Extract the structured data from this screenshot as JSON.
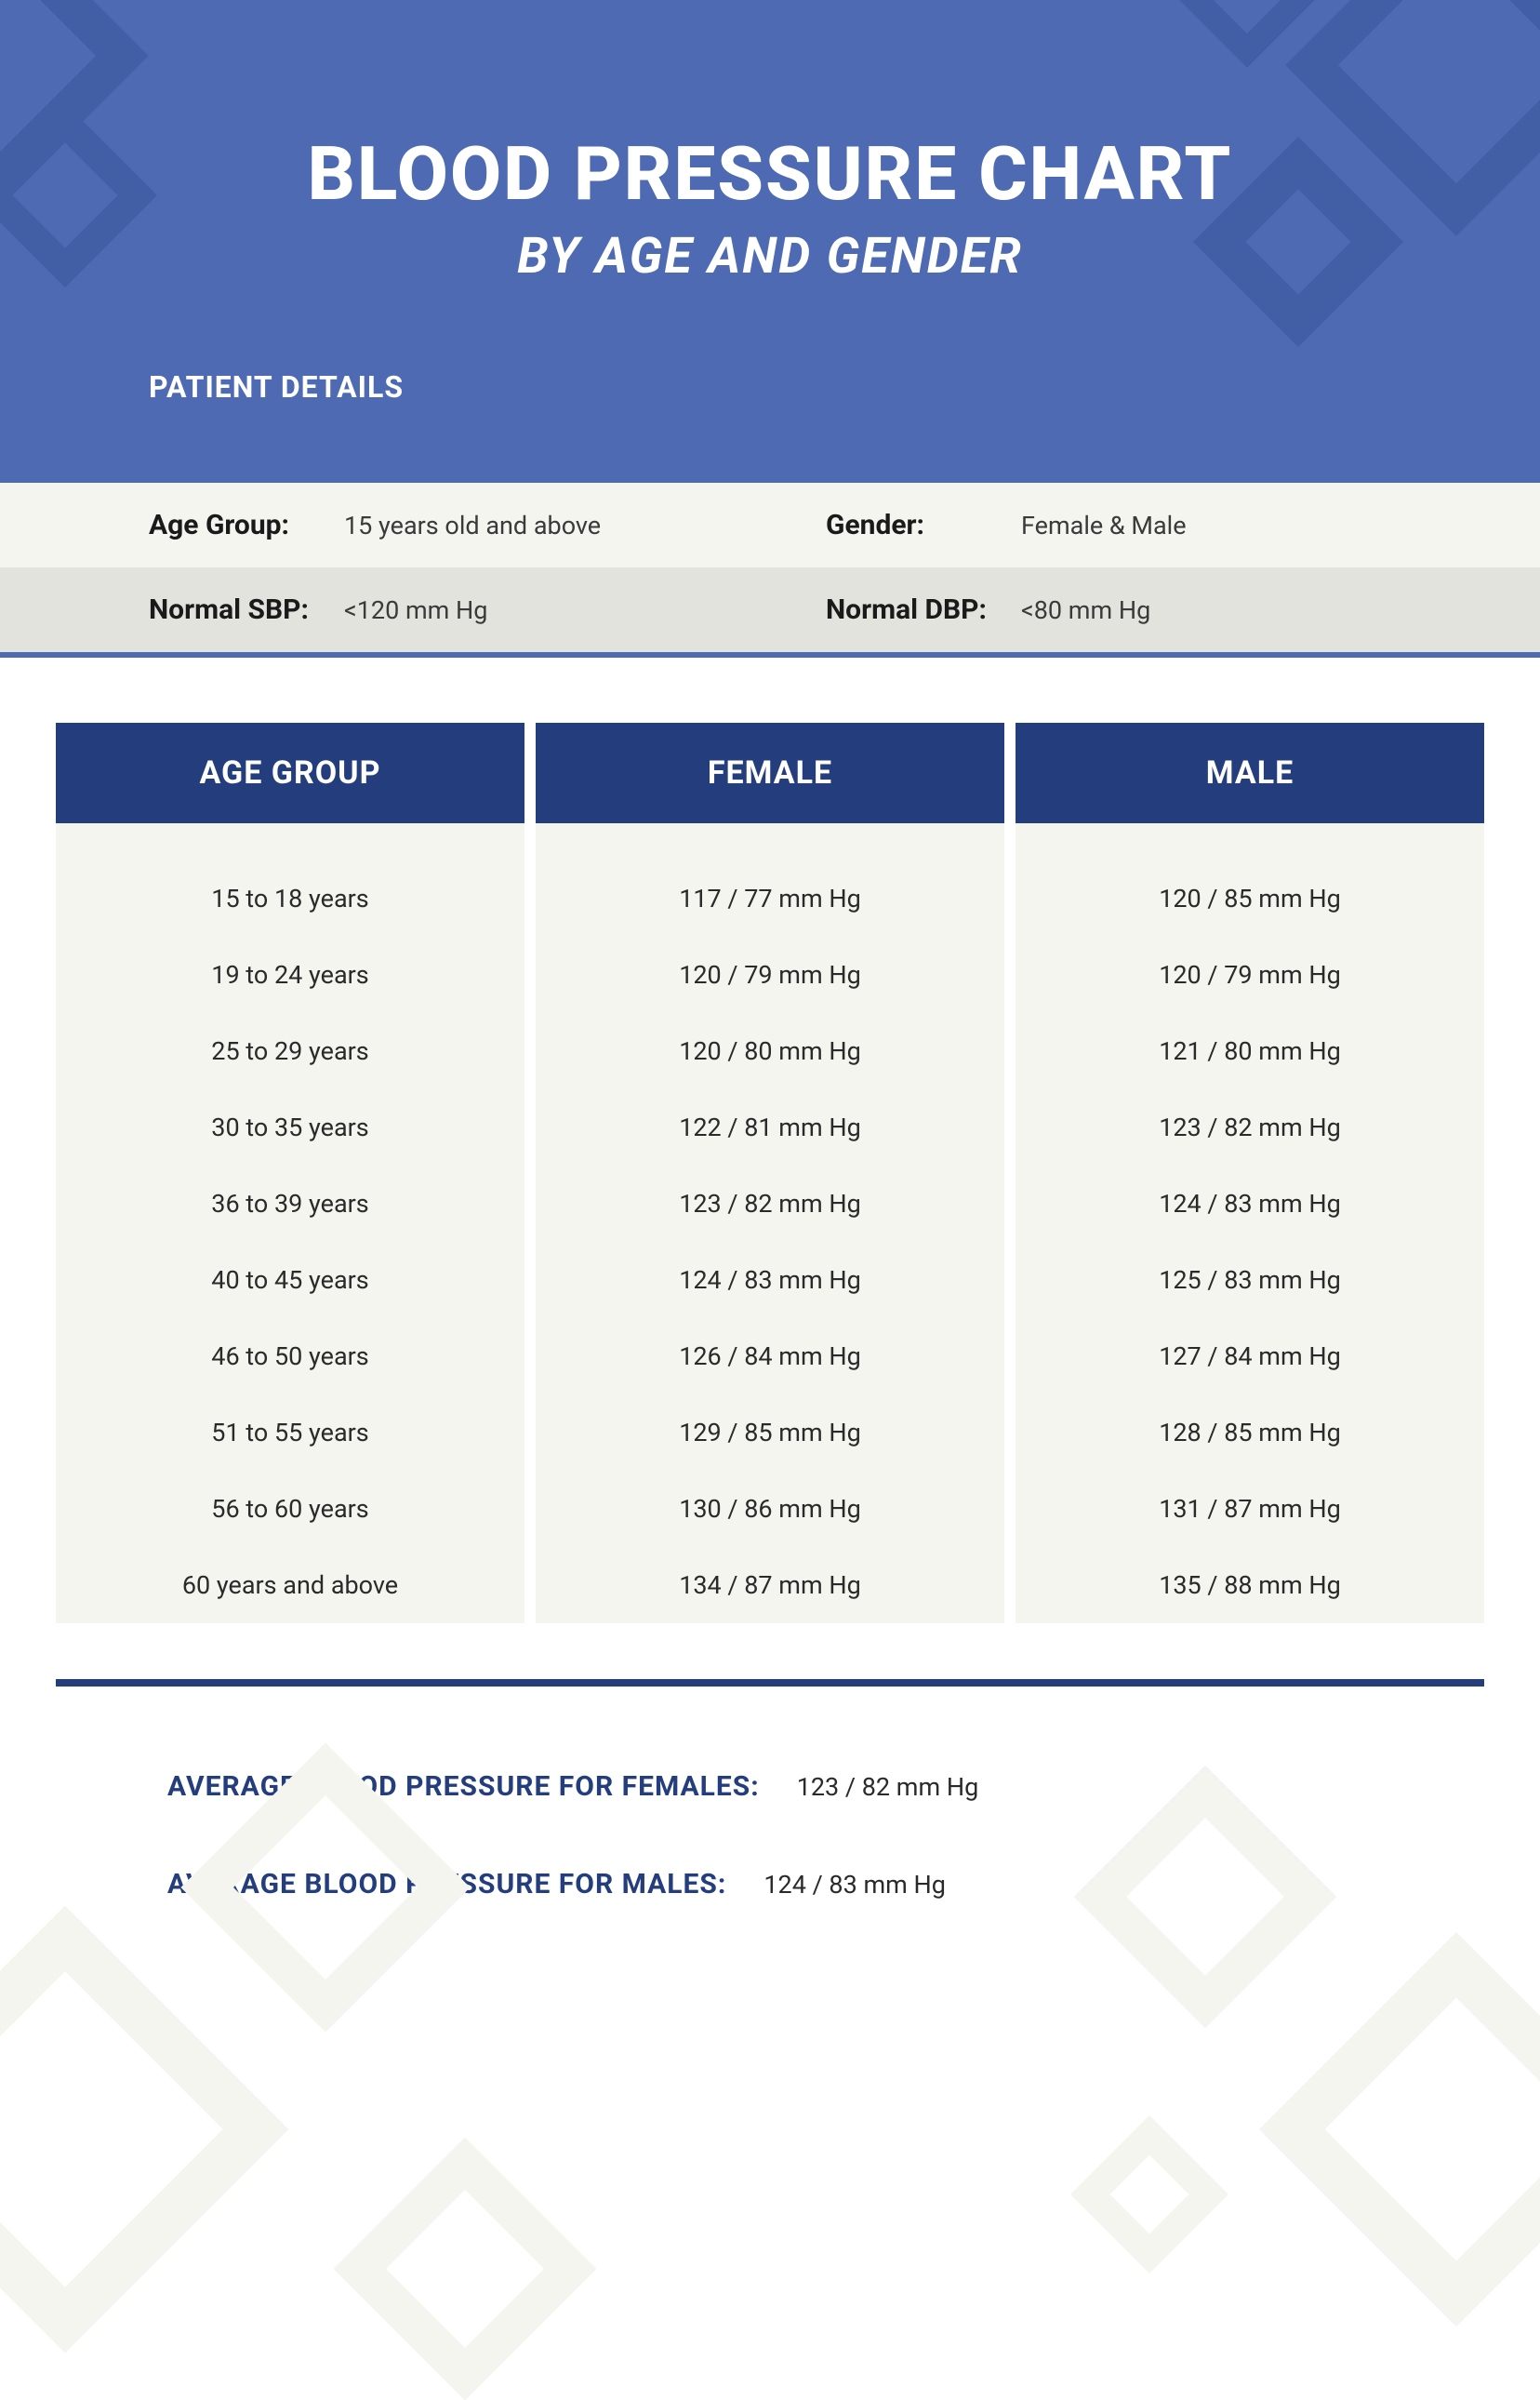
{
  "header": {
    "title": "BLOOD PRESSURE CHART",
    "subtitle": "BY AGE AND GENDER",
    "patient_section_label": "PATIENT DETAILS",
    "bg_color": "#4d6ab2",
    "deco_color": "#425fa5",
    "title_fontsize": 80,
    "subtitle_fontsize": 54
  },
  "patient_details": {
    "age_group_label": "Age Group:",
    "age_group_value": "15 years old and above",
    "gender_label": "Gender:",
    "gender_value": "Female & Male",
    "normal_sbp_label": "Normal SBP:",
    "normal_sbp_value": "<120 mm Hg",
    "normal_dbp_label": "Normal DBP:",
    "normal_dbp_value": "<80 mm Hg",
    "row1_bg": "#f4f5ee",
    "row2_bg": "#e3e3dd",
    "border_color": "#4d6ab2"
  },
  "table": {
    "type": "table",
    "header_bg": "#243e7d",
    "header_text_color": "#ffffff",
    "body_bg": "#f4f5ee",
    "border_bottom_color": "#243e7d",
    "cell_fontsize": 27,
    "header_fontsize": 34,
    "columns": [
      "AGE GROUP",
      "FEMALE",
      "MALE"
    ],
    "rows": [
      [
        "15 to 18 years",
        "117 / 77 mm Hg",
        "120 / 85 mm Hg"
      ],
      [
        "19 to 24 years",
        "120 / 79 mm Hg",
        "120 / 79 mm Hg"
      ],
      [
        "25 to 29 years",
        "120 / 80 mm Hg",
        "121 / 80 mm Hg"
      ],
      [
        "30 to 35 years",
        "122 / 81 mm Hg",
        "123 / 82 mm Hg"
      ],
      [
        "36 to 39 years",
        "123 / 82 mm Hg",
        "124 / 83 mm Hg"
      ],
      [
        "40 to 45 years",
        "124 / 83 mm Hg",
        "125 / 83 mm Hg"
      ],
      [
        "46 to 50 years",
        "126 / 84 mm Hg",
        "127 / 84 mm Hg"
      ],
      [
        "51 to 55 years",
        "129 / 85 mm Hg",
        "128 / 85 mm Hg"
      ],
      [
        "56 to 60 years",
        "130 / 86 mm Hg",
        "131 / 87 mm Hg"
      ],
      [
        "60 years and above",
        "134 / 87 mm Hg",
        "135 / 88 mm Hg"
      ]
    ]
  },
  "averages": {
    "female_label": "AVERAGE BLOOD PRESSURE FOR FEMALES:",
    "female_value": "123 / 82 mm Hg",
    "male_label": "AVERAGE BLOOD PRESSURE FOR MALES:",
    "male_value": "124 / 83 mm Hg",
    "label_color": "#243e7d",
    "label_fontsize": 30,
    "value_fontsize": 27
  },
  "footer_deco_color": "#f4f5ee"
}
